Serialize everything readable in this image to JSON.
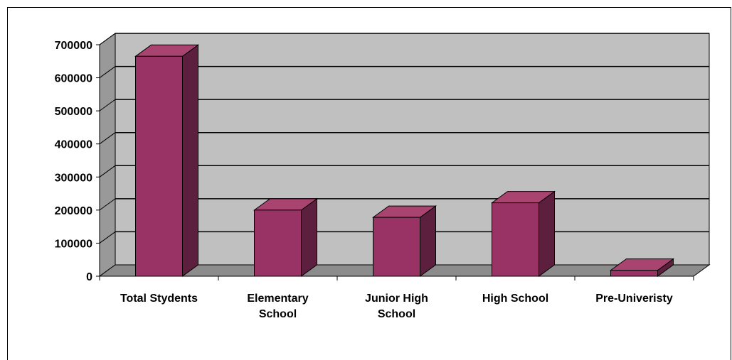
{
  "chart_data": {
    "type": "bar",
    "style": "3d-column",
    "categories": [
      "Total Stydents",
      "Elementary School",
      "Junior High School",
      "High School",
      "Pre-Univeristy"
    ],
    "category_lines": [
      [
        "Total Stydents"
      ],
      [
        "Elementary",
        "School"
      ],
      [
        "Junior High",
        "School"
      ],
      [
        "High School"
      ],
      [
        "Pre-Univeristy"
      ]
    ],
    "values": [
      665000,
      200000,
      178000,
      222000,
      18000
    ],
    "ylim": [
      0,
      700000
    ],
    "yticks": [
      0,
      100000,
      200000,
      300000,
      400000,
      500000,
      600000,
      700000
    ],
    "title": "",
    "xlabel": "",
    "ylabel": "",
    "grid": true,
    "legend": "none",
    "colors": {
      "bar_front": "#993366",
      "bar_top": "#A8446F",
      "bar_side": "#5C1F3D",
      "back_wall": "#C0C0C0",
      "side_wall": "#999999",
      "floor": "#8C8C8C",
      "grid": "#000000"
    }
  }
}
